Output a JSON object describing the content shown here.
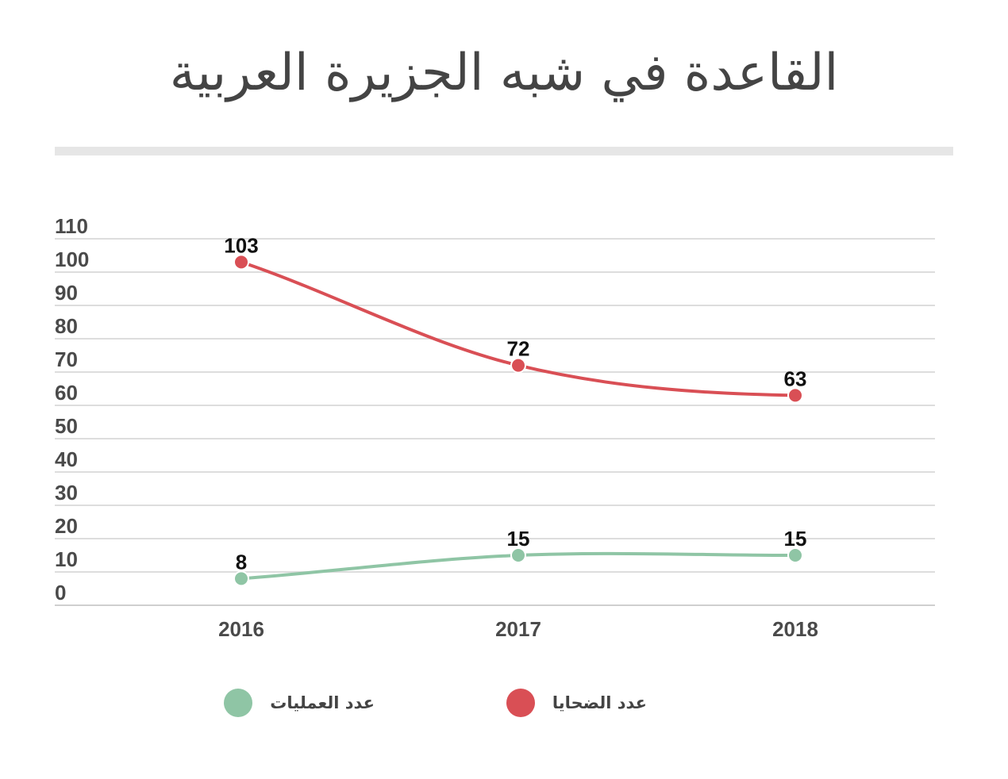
{
  "title": "القاعدة في شبه الجزيرة العربية",
  "chart_data": {
    "type": "line",
    "title": "القاعدة في شبه الجزيرة العربية",
    "categories": [
      "2016",
      "2017",
      "2018"
    ],
    "ylim": [
      0,
      110
    ],
    "yticks": [
      0,
      10,
      20,
      30,
      40,
      50,
      60,
      70,
      80,
      90,
      100,
      110
    ],
    "grid": true,
    "legend_position": "bottom",
    "series": [
      {
        "name": "عدد الضحايا",
        "values": [
          103,
          72,
          63
        ],
        "color": "#d94f55"
      },
      {
        "name": "عدد العمليات",
        "values": [
          8,
          15,
          15
        ],
        "color": "#8fc5a5"
      }
    ]
  }
}
